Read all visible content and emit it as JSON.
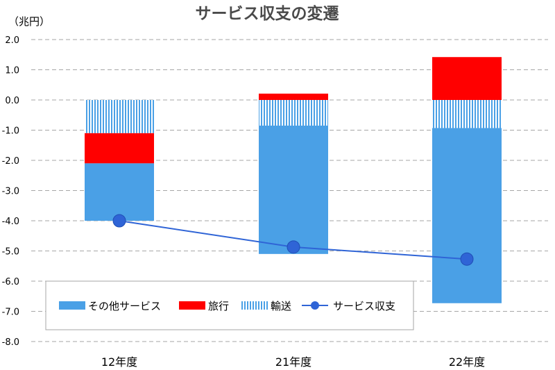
{
  "chart_data": {
    "type": "bar",
    "title": "サービス収支の変遷",
    "ylabel": "（兆円）",
    "xlabel": "",
    "categories": [
      "12年度",
      "21年度",
      "22年度"
    ],
    "ylim": [
      -8.0,
      2.0
    ],
    "yticks": [
      "2.0",
      "1.0",
      "0.0",
      "-1.0",
      "-2.0",
      "-3.0",
      "-4.0",
      "-5.0",
      "-6.0",
      "-7.0",
      "-8.0"
    ],
    "grid": true,
    "legend_position": "bottom-left",
    "stacked": true,
    "series": [
      {
        "name": "その他サービス",
        "kind": "bar",
        "pattern": "solid",
        "color": "#4aa0e6",
        "values": [
          -1.9,
          -4.25,
          -5.8
        ]
      },
      {
        "name": "旅行",
        "kind": "bar",
        "pattern": "solid",
        "color": "#ff0000",
        "values": [
          -1.0,
          0.21,
          1.42
        ]
      },
      {
        "name": "輸送",
        "kind": "bar",
        "pattern": "vertical-lines",
        "color": "#4aa0e6",
        "values": [
          -1.1,
          -0.85,
          -0.93
        ]
      },
      {
        "name": "サービス収支",
        "kind": "line",
        "color": "#2f64d6",
        "values": [
          -4.0,
          -4.87,
          -5.27
        ]
      }
    ]
  }
}
